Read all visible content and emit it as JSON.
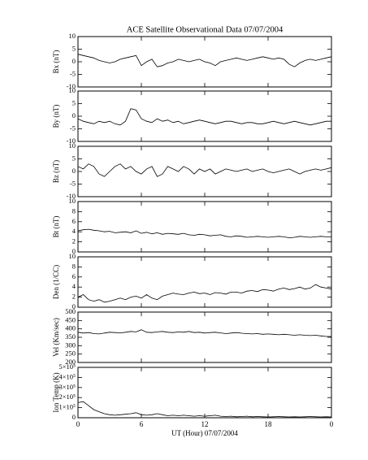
{
  "chart_data": [
    {
      "type": "line",
      "title": "ACE Satellite Observational Data   07/07/2004",
      "ylabel": "Bx (nT)",
      "ylim": [
        -10,
        10
      ],
      "yticks": [
        -10,
        -5,
        0,
        5,
        10
      ],
      "xlim": [
        0,
        24
      ],
      "xticks": [
        0,
        6,
        12,
        18,
        {
          "value": 24,
          "label": "0"
        }
      ],
      "x": [
        0,
        0.5,
        1,
        1.5,
        2,
        2.5,
        3,
        3.5,
        4,
        4.5,
        5,
        5.5,
        6,
        6.5,
        7,
        7.5,
        8,
        8.5,
        9,
        9.5,
        10,
        10.5,
        11,
        11.5,
        12,
        12.5,
        13,
        13.5,
        14,
        14.5,
        15,
        15.5,
        16,
        16.5,
        17,
        17.5,
        18,
        18.5,
        19,
        19.5,
        20,
        20.5,
        21,
        21.5,
        22,
        22.5,
        23,
        23.5,
        24
      ],
      "values": [
        3,
        2.5,
        2,
        1.5,
        0.5,
        0,
        -0.5,
        0,
        1,
        1.5,
        2,
        2.5,
        -1.5,
        0,
        1,
        -2,
        -1.5,
        -0.5,
        0,
        1,
        0.5,
        0,
        0.5,
        1,
        0,
        -0.5,
        -1.5,
        0,
        0.5,
        1,
        1.5,
        1,
        0.5,
        1,
        1.5,
        2,
        1.5,
        1,
        1.5,
        1,
        -1,
        -2,
        -0.5,
        0.5,
        1,
        0.5,
        1,
        1.5,
        2
      ]
    },
    {
      "type": "line",
      "ylabel": "By (nT)",
      "ylim": [
        -10,
        10
      ],
      "yticks": [
        -10,
        -5,
        0,
        5,
        10
      ],
      "xlim": [
        0,
        24
      ],
      "xticks": [
        0,
        6,
        12,
        18,
        {
          "value": 24,
          "label": "0"
        }
      ],
      "x": [
        0,
        0.5,
        1,
        1.5,
        2,
        2.5,
        3,
        3.5,
        4,
        4.5,
        5,
        5.5,
        6,
        6.5,
        7,
        7.5,
        8,
        8.5,
        9,
        9.5,
        10,
        10.5,
        11,
        11.5,
        12,
        12.5,
        13,
        13.5,
        14,
        14.5,
        15,
        15.5,
        16,
        16.5,
        17,
        17.5,
        18,
        18.5,
        19,
        19.5,
        20,
        20.5,
        21,
        21.5,
        22,
        22.5,
        23,
        23.5,
        24
      ],
      "values": [
        -1,
        -2,
        -2.5,
        -3,
        -2,
        -2.5,
        -2,
        -3,
        -3.5,
        -2,
        3,
        2.5,
        -1,
        -2,
        -2.5,
        -1,
        -2,
        -1.5,
        -2.5,
        -2,
        -3,
        -2.5,
        -2,
        -1.5,
        -2,
        -2.5,
        -3,
        -2.5,
        -2,
        -2,
        -2.5,
        -3,
        -2.5,
        -2.5,
        -3,
        -3,
        -2.5,
        -2,
        -2.5,
        -3,
        -2.5,
        -2,
        -2.5,
        -3,
        -3.5,
        -3,
        -2.5,
        -2,
        -2
      ]
    },
    {
      "type": "line",
      "ylabel": "Bz (nT)",
      "ylim": [
        -10,
        10
      ],
      "yticks": [
        -10,
        -5,
        0,
        5,
        10
      ],
      "xlim": [
        0,
        24
      ],
      "xticks": [
        0,
        6,
        12,
        18,
        {
          "value": 24,
          "label": "0"
        }
      ],
      "x": [
        0,
        0.5,
        1,
        1.5,
        2,
        2.5,
        3,
        3.5,
        4,
        4.5,
        5,
        5.5,
        6,
        6.5,
        7,
        7.5,
        8,
        8.5,
        9,
        9.5,
        10,
        10.5,
        11,
        11.5,
        12,
        12.5,
        13,
        13.5,
        14,
        14.5,
        15,
        15.5,
        16,
        16.5,
        17,
        17.5,
        18,
        18.5,
        19,
        19.5,
        20,
        20.5,
        21,
        21.5,
        22,
        22.5,
        23,
        23.5,
        24
      ],
      "values": [
        2,
        1,
        3,
        2,
        -1,
        -2,
        0,
        2,
        3,
        1,
        2,
        0,
        -1,
        1,
        2,
        -2,
        -1,
        2,
        1,
        0,
        2,
        1,
        -1,
        1,
        0,
        1,
        -1,
        0,
        1,
        0.5,
        0,
        0.5,
        1,
        0,
        0.5,
        1,
        0,
        -0.5,
        0,
        0.5,
        1,
        0,
        -1,
        0,
        0.5,
        1,
        0.5,
        1,
        1.5
      ]
    },
    {
      "type": "line",
      "ylabel": "Bt (nT)",
      "ylim": [
        0,
        10
      ],
      "yticks": [
        0,
        2,
        4,
        6,
        8,
        10
      ],
      "xlim": [
        0,
        24
      ],
      "xticks": [
        0,
        6,
        12,
        18,
        {
          "value": 24,
          "label": "0"
        }
      ],
      "x": [
        0,
        0.5,
        1,
        1.5,
        2,
        2.5,
        3,
        3.5,
        4,
        4.5,
        5,
        5.5,
        6,
        6.5,
        7,
        7.5,
        8,
        8.5,
        9,
        9.5,
        10,
        10.5,
        11,
        11.5,
        12,
        12.5,
        13,
        13.5,
        14,
        14.5,
        15,
        15.5,
        16,
        16.5,
        17,
        17.5,
        18,
        18.5,
        19,
        19.5,
        20,
        20.5,
        21,
        21.5,
        22,
        22.5,
        23,
        23.5,
        24
      ],
      "values": [
        4.2,
        4.4,
        4.5,
        4.3,
        4.2,
        4,
        4.1,
        3.8,
        3.9,
        4,
        3.8,
        4.2,
        3.7,
        3.9,
        3.6,
        3.8,
        3.5,
        3.7,
        3.6,
        3.5,
        3.7,
        3.4,
        3.3,
        3.5,
        3.4,
        3.2,
        3.3,
        3.4,
        3.1,
        3,
        3.2,
        3.1,
        2.9,
        3,
        3.1,
        3,
        2.9,
        3,
        3.1,
        3,
        2.8,
        2.9,
        3.1,
        3,
        2.9,
        3,
        3.1,
        3,
        3
      ]
    },
    {
      "type": "line",
      "ylabel": "Den (1/CC)",
      "ylim": [
        0,
        10
      ],
      "yticks": [
        0,
        2,
        4,
        6,
        8,
        10
      ],
      "xlim": [
        0,
        24
      ],
      "xticks": [
        0,
        6,
        12,
        18,
        {
          "value": 24,
          "label": "0"
        }
      ],
      "x": [
        0,
        0.5,
        1,
        1.5,
        2,
        2.5,
        3,
        3.5,
        4,
        4.5,
        5,
        5.5,
        6,
        6.5,
        7,
        7.5,
        8,
        8.5,
        9,
        9.5,
        10,
        10.5,
        11,
        11.5,
        12,
        12.5,
        13,
        13.5,
        14,
        14.5,
        15,
        15.5,
        16,
        16.5,
        17,
        17.5,
        18,
        18.5,
        19,
        19.5,
        20,
        20.5,
        21,
        21.5,
        22,
        22.5,
        23,
        23.5,
        24
      ],
      "values": [
        2,
        2.5,
        1.5,
        1.2,
        1.5,
        1,
        1.2,
        1.5,
        1.8,
        1.5,
        2,
        2.2,
        1.8,
        2.5,
        1.8,
        1.5,
        2.2,
        2.5,
        2.8,
        2.6,
        2.5,
        2.8,
        3,
        2.7,
        2.8,
        2.5,
        2.9,
        2.8,
        2.6,
        3,
        3,
        2.8,
        3.2,
        3.3,
        3.1,
        3.5,
        3.4,
        3.2,
        3.6,
        3.8,
        3.5,
        3.7,
        4,
        3.6,
        3.8,
        4.5,
        4,
        3.8,
        3.6
      ]
    },
    {
      "type": "line",
      "ylabel": "Vel (Km/sec)",
      "ylim": [
        200,
        500
      ],
      "yticks": [
        200,
        250,
        300,
        350,
        400,
        450,
        500
      ],
      "xlim": [
        0,
        24
      ],
      "xticks": [
        0,
        6,
        12,
        18,
        {
          "value": 24,
          "label": "0"
        }
      ],
      "x": [
        0,
        0.5,
        1,
        1.5,
        2,
        2.5,
        3,
        3.5,
        4,
        4.5,
        5,
        5.5,
        6,
        6.5,
        7,
        7.5,
        8,
        8.5,
        9,
        9.5,
        10,
        10.5,
        11,
        11.5,
        12,
        12.5,
        13,
        13.5,
        14,
        14.5,
        15,
        15.5,
        16,
        16.5,
        17,
        17.5,
        18,
        18.5,
        19,
        19.5,
        20,
        20.5,
        21,
        21.5,
        22,
        22.5,
        23,
        23.5,
        24
      ],
      "values": [
        380,
        375,
        378,
        372,
        370,
        375,
        380,
        378,
        376,
        380,
        385,
        382,
        395,
        380,
        378,
        382,
        385,
        380,
        378,
        382,
        380,
        385,
        378,
        380,
        375,
        378,
        380,
        376,
        372,
        375,
        378,
        374,
        372,
        370,
        372,
        368,
        370,
        368,
        365,
        368,
        365,
        362,
        365,
        362,
        360,
        362,
        358,
        355,
        355
      ]
    },
    {
      "type": "line",
      "ylabel": "Ion Temp (K)",
      "xlabel": "UT (Hour)   07/07/2004",
      "ylim": [
        0,
        500000
      ],
      "yticks": [
        0,
        {
          "value": 100000,
          "label": "1×10⁵"
        },
        {
          "value": 200000,
          "label": "2×10⁵"
        },
        {
          "value": 300000,
          "label": "3×10⁵"
        },
        {
          "value": 400000,
          "label": "4×10⁵"
        },
        {
          "value": 500000,
          "label": "5×10⁵"
        }
      ],
      "xlim": [
        0,
        24
      ],
      "xticks": [
        0,
        6,
        12,
        18,
        {
          "value": 24,
          "label": "0"
        }
      ],
      "xtick_labels_shown": true,
      "x": [
        0,
        0.5,
        1,
        1.5,
        2,
        2.5,
        3,
        3.5,
        4,
        4.5,
        5,
        5.5,
        6,
        6.5,
        7,
        7.5,
        8,
        8.5,
        9,
        9.5,
        10,
        10.5,
        11,
        11.5,
        12,
        12.5,
        13,
        13.5,
        14,
        14.5,
        15,
        15.5,
        16,
        16.5,
        17,
        17.5,
        18,
        18.5,
        19,
        19.5,
        20,
        20.5,
        21,
        21.5,
        22,
        22.5,
        23,
        23.5,
        24
      ],
      "values": [
        150000,
        160000,
        120000,
        80000,
        60000,
        40000,
        30000,
        25000,
        30000,
        35000,
        40000,
        50000,
        30000,
        25000,
        30000,
        40000,
        30000,
        20000,
        25000,
        20000,
        25000,
        20000,
        15000,
        20000,
        15000,
        20000,
        25000,
        15000,
        12000,
        15000,
        10000,
        12000,
        15000,
        10000,
        12000,
        10000,
        8000,
        10000,
        12000,
        10000,
        8000,
        10000,
        8000,
        10000,
        12000,
        10000,
        8000,
        10000,
        8000
      ]
    }
  ]
}
